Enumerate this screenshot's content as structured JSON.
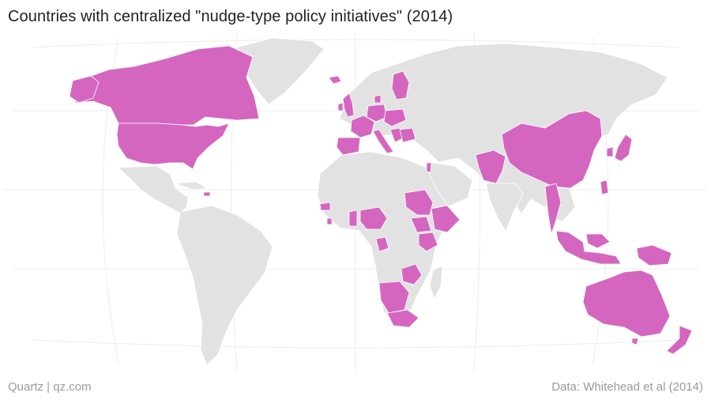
{
  "title": "Countries with centralized \"nudge-type policy initiatives\" (2014)",
  "footer": {
    "brand": "Quartz | qz.com",
    "source": "Data: Whitehead et al (2014)"
  },
  "colors": {
    "highlight": "#d466c0",
    "land": "#e2e2e2",
    "graticule": "#ececec",
    "background": "#ffffff"
  },
  "map_data": {
    "highlighted_countries": [
      "Canada",
      "United States",
      "Bahamas",
      "Dominican Republic",
      "United Kingdom",
      "Ireland",
      "Iceland",
      "France",
      "Spain",
      "Portugal",
      "Italy",
      "Germany",
      "Netherlands",
      "Belgium",
      "Denmark",
      "Finland",
      "Poland",
      "Czech Republic",
      "Austria",
      "Slovenia",
      "Croatia",
      "Hungary",
      "Bulgaria",
      "Romania",
      "Greece",
      "Israel",
      "Afghanistan",
      "Pakistan",
      "China",
      "Japan",
      "South Korea",
      "Myanmar",
      "Thailand",
      "Indonesia",
      "Papua New Guinea",
      "Philippines",
      "Australia",
      "New Zealand",
      "Sudan",
      "South Sudan",
      "Ethiopia",
      "Kenya",
      "Uganda",
      "Nigeria",
      "Ghana",
      "Sierra Leone",
      "Senegal",
      "Gabon",
      "Zambia",
      "Malawi",
      "Namibia",
      "Botswana",
      "South Africa",
      "Zimbabwe"
    ]
  }
}
